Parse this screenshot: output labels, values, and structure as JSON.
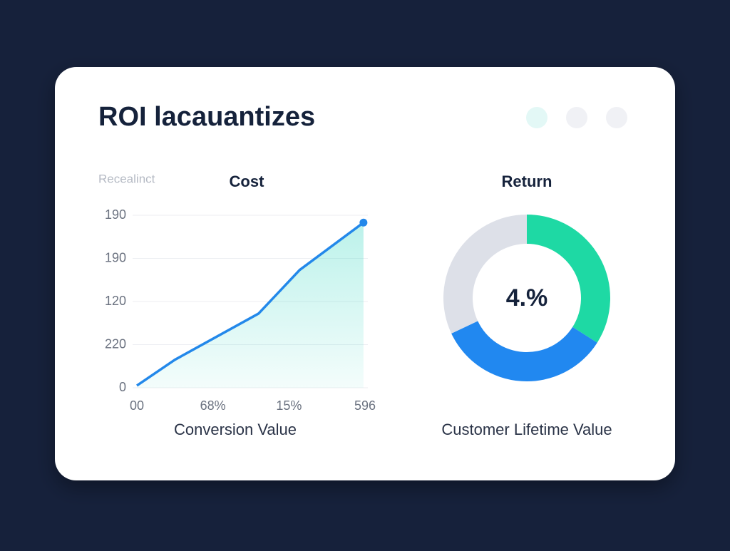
{
  "title": "ROI lacauantizes",
  "chart_data": [
    {
      "type": "line",
      "title": "Cost",
      "y_label": "Recealinct",
      "x_label": "Conversion Value",
      "color": "#2388ea",
      "area_color": "#3fd9c4",
      "grid": true,
      "x": [
        0,
        0.5,
        1.6,
        2.14,
        2.98
      ],
      "values": [
        0.05,
        0.65,
        1.72,
        2.73,
        3.83
      ],
      "xlim": [
        0,
        3
      ],
      "ylim": [
        0,
        4
      ],
      "xticks": [
        {
          "value": 0,
          "label": "00"
        },
        {
          "value": 1,
          "label": "68%"
        },
        {
          "value": 2,
          "label": "15%"
        },
        {
          "value": 3,
          "label": "596"
        }
      ],
      "yticks": [
        0,
        {
          "value": 1,
          "label": "220"
        },
        {
          "value": 2,
          "label": "120"
        },
        {
          "value": 3,
          "label": "190"
        },
        {
          "value": 4,
          "label": "190"
        }
      ]
    },
    {
      "type": "donut",
      "title": "Return",
      "center_label": "4.%",
      "x_label": "Customer Lifetime Value",
      "values": [
        34,
        34,
        32
      ],
      "colors": [
        "#1ed9a4",
        "#2188f0",
        "#dde0e8"
      ]
    }
  ]
}
